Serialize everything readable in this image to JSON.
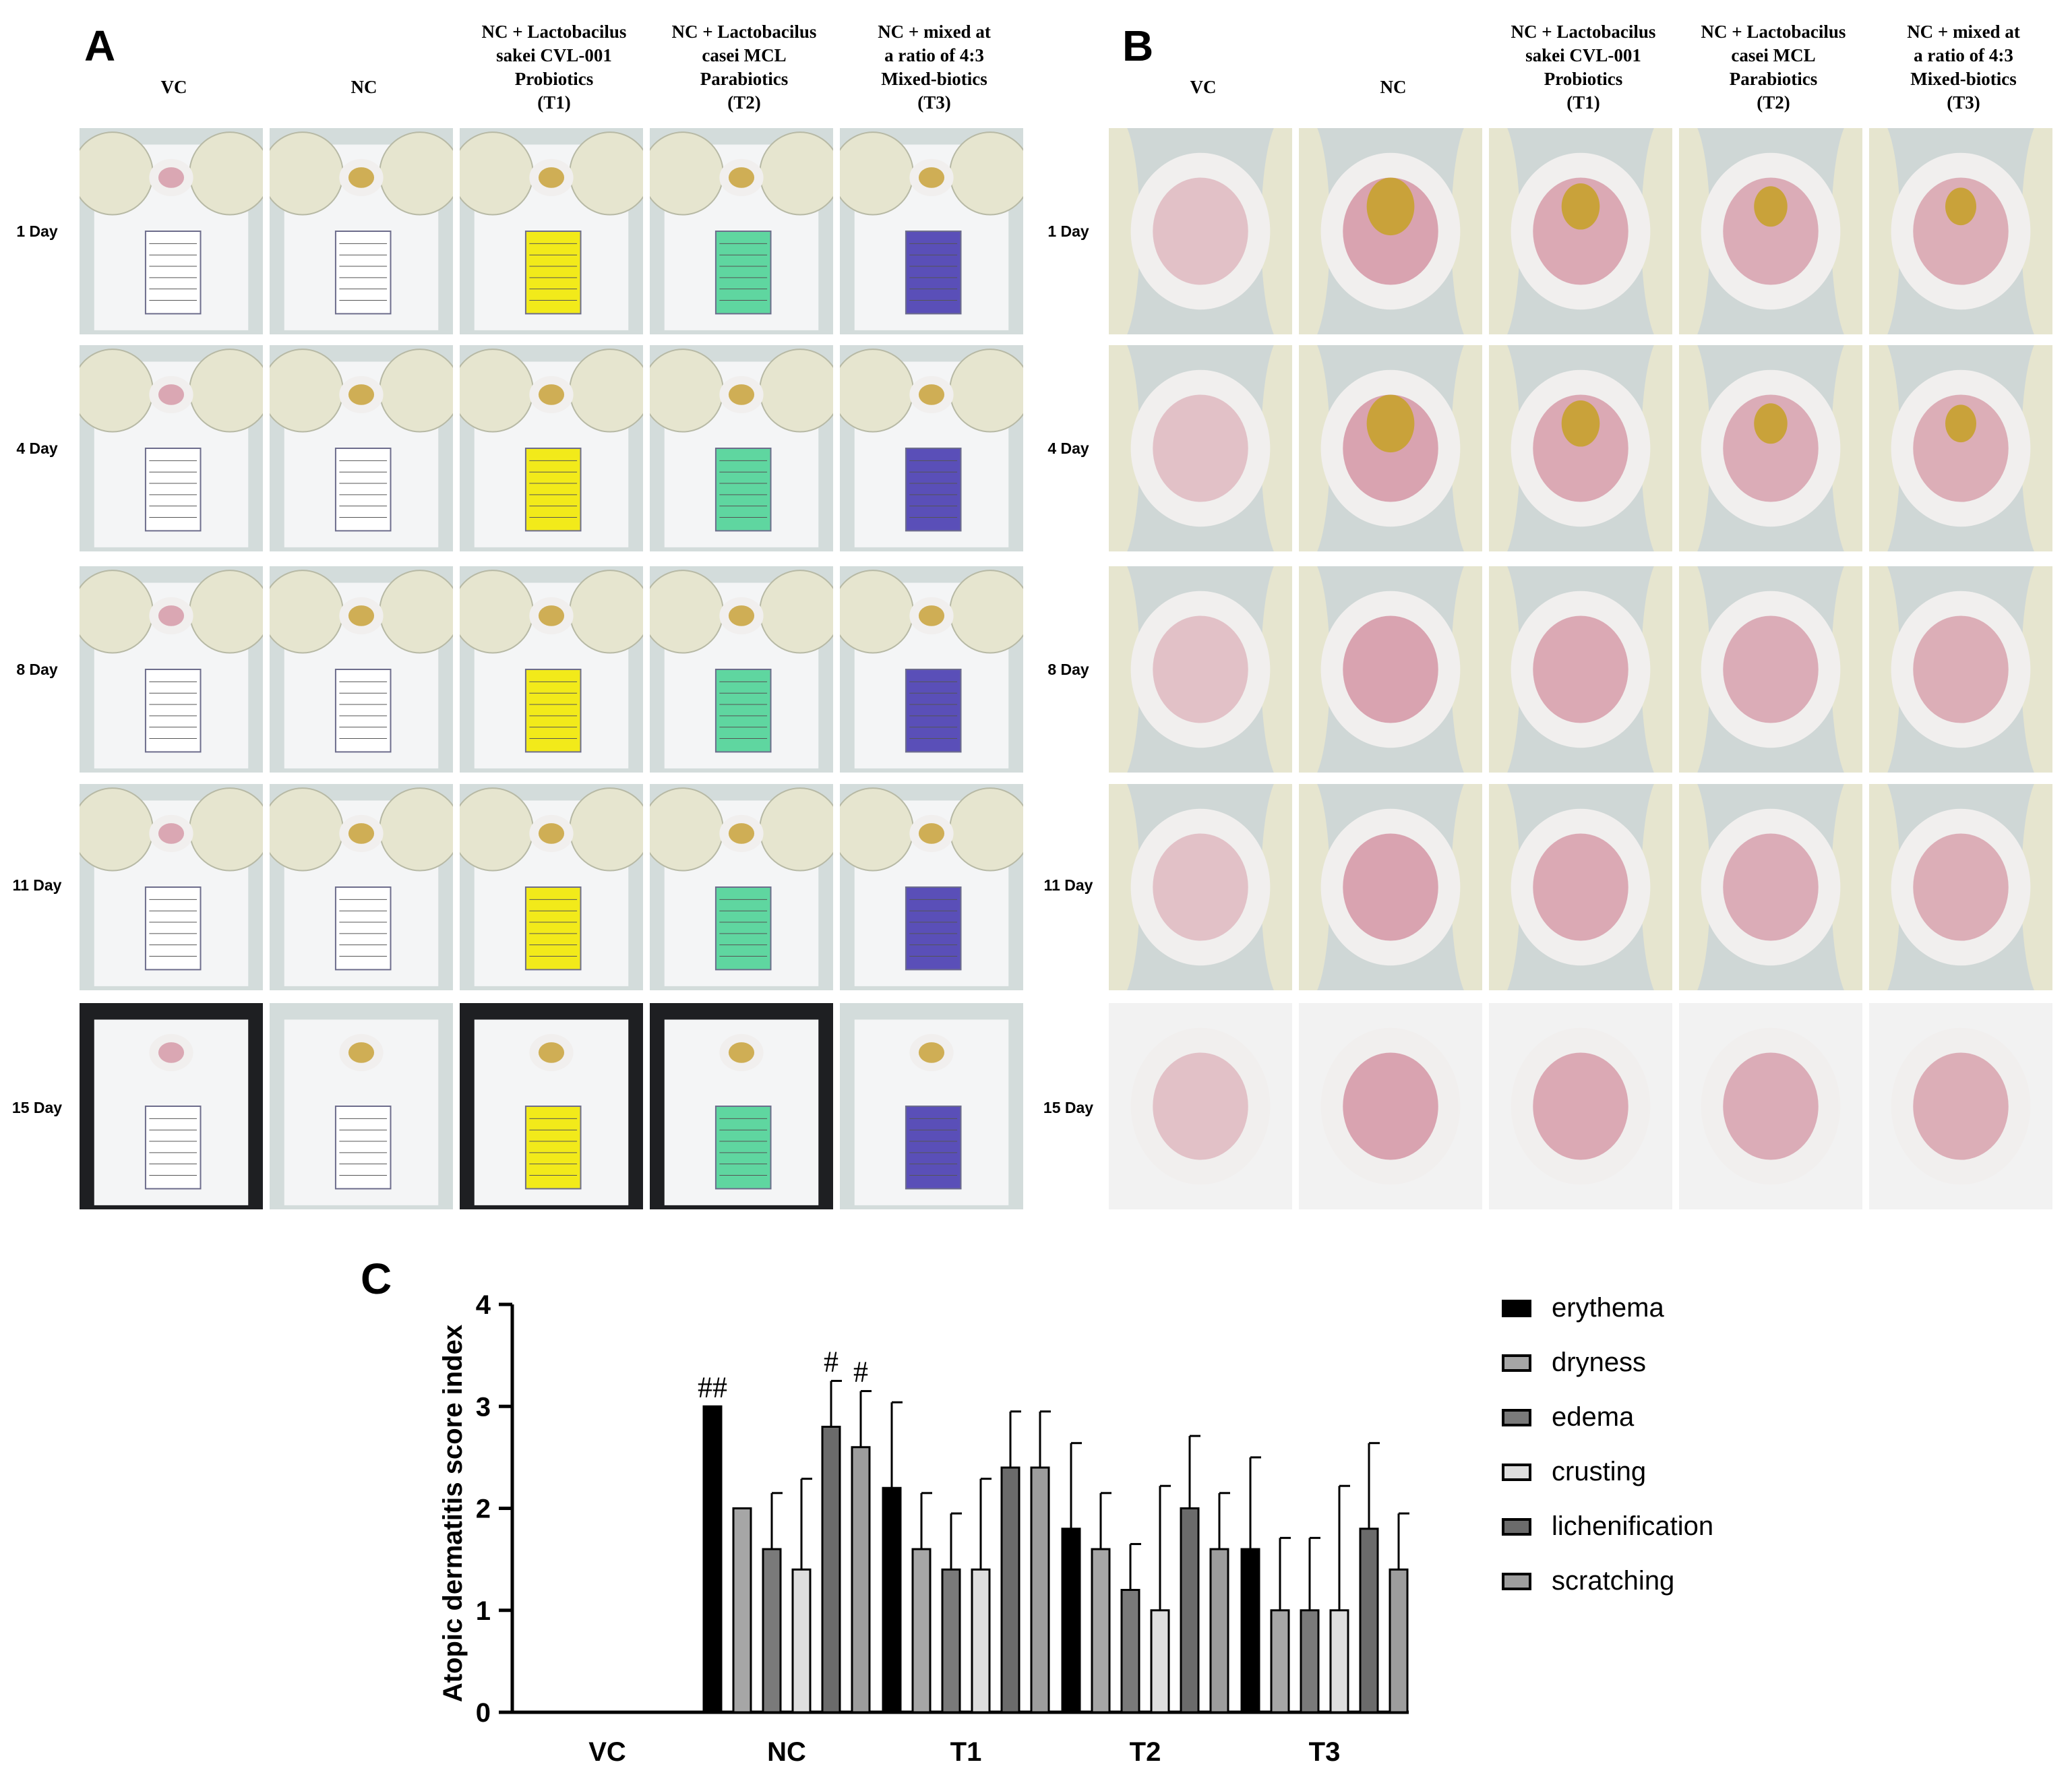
{
  "panel_a": {
    "letter": "A",
    "columns": [
      {
        "id": "vc",
        "header": "VC",
        "tag": ""
      },
      {
        "id": "nc",
        "header": "NC",
        "tag": ""
      },
      {
        "id": "t1",
        "header": "NC + Lactobacilus\nsakei CVL-001\nProbiotics\n(T1)",
        "tag": "yellow"
      },
      {
        "id": "t2",
        "header": "NC + Lactobacilus\ncasei MCL\nParabiotics\n(T2)",
        "tag": "green"
      },
      {
        "id": "t3",
        "header": "NC + mixed at\na ratio of 4:3\nMixed-biotics\n(T3)",
        "tag": "purple"
      }
    ]
  },
  "panel_b": {
    "letter": "B",
    "columns": [
      {
        "id": "vc",
        "header": "VC"
      },
      {
        "id": "nc",
        "header": "NC"
      },
      {
        "id": "t1",
        "header": "NC + Lactobacilus\nsakei CVL-001\nProbiotics\n(T1)"
      },
      {
        "id": "t2",
        "header": "NC + Lactobacilus\ncasei MCL\nParabiotics\n(T2)"
      },
      {
        "id": "t3",
        "header": "NC + mixed at\na ratio of 4:3\nMixed-biotics\n(T3)"
      }
    ]
  },
  "rows": [
    "1 Day",
    "4 Day",
    "8 Day",
    "11 Day",
    "15 Day"
  ],
  "colors": {
    "tag_yellow": "#f2ea1a",
    "tag_green": "#5fd6a0",
    "tag_purple": "#5a4fb8",
    "skin": "#d69aa8",
    "lesion": "#c9a23a",
    "fur": "#f1efee",
    "glove": "#e6e5cf",
    "background": "#cfd7d6"
  },
  "panel_c": {
    "letter": "C",
    "chart_data": {
      "type": "bar",
      "ylabel": "Atopic dermatitis score index",
      "ylim": [
        0,
        4
      ],
      "yticks": [
        "0",
        "1",
        "2",
        "3",
        "4"
      ],
      "categories": [
        "VC",
        "NC",
        "T1",
        "T2",
        "T3"
      ],
      "series": [
        {
          "name": "erythema",
          "color": "#000000",
          "values": [
            0,
            3.0,
            2.2,
            1.8,
            1.6
          ],
          "errors": [
            0,
            0,
            0.84,
            0.84,
            0.9
          ],
          "annotations": [
            "",
            "##",
            "",
            "",
            ""
          ]
        },
        {
          "name": "dryness",
          "color": "#a6a6a6",
          "values": [
            0,
            2.0,
            1.6,
            1.6,
            1.0
          ],
          "errors": [
            0,
            0,
            0.55,
            0.55,
            0.71
          ],
          "annotations": [
            "",
            "",
            "",
            "",
            ""
          ]
        },
        {
          "name": "edema",
          "color": "#7a7a7a",
          "values": [
            0,
            1.6,
            1.4,
            1.2,
            1.0
          ],
          "errors": [
            0,
            0.55,
            0.55,
            0.45,
            0.71
          ],
          "annotations": [
            "",
            "",
            "",
            "",
            ""
          ]
        },
        {
          "name": "crusting",
          "color": "#dedede",
          "values": [
            0,
            1.4,
            1.4,
            1.0,
            1.0
          ],
          "errors": [
            0,
            0.89,
            0.89,
            1.22,
            1.22
          ],
          "annotations": [
            "",
            "",
            "",
            "",
            ""
          ]
        },
        {
          "name": "lichenification",
          "color": "#6b6b6b",
          "values": [
            0,
            2.8,
            2.4,
            2.0,
            1.8
          ],
          "errors": [
            0,
            0.45,
            0.55,
            0.71,
            0.84
          ],
          "annotations": [
            "",
            "#",
            "",
            "",
            ""
          ]
        },
        {
          "name": "scratching",
          "color": "#9d9d9d",
          "values": [
            0,
            2.6,
            2.4,
            1.6,
            1.4
          ],
          "errors": [
            0,
            0.55,
            0.55,
            0.55,
            0.55
          ],
          "annotations": [
            "",
            "#",
            "",
            "",
            ""
          ]
        }
      ]
    }
  }
}
